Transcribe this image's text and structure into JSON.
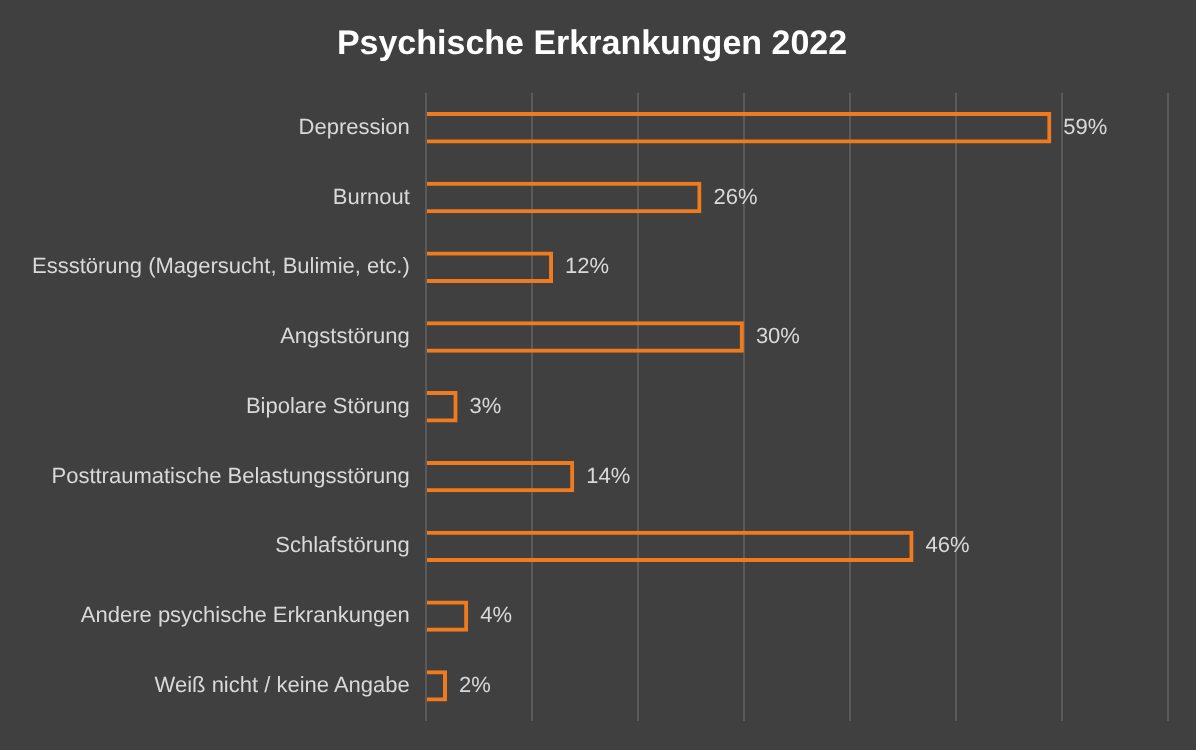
{
  "chart_data": {
    "type": "bar",
    "orientation": "horizontal",
    "title": "Psychische Erkrankungen 2022",
    "categories": [
      "Depression",
      "Burnout",
      "Essstörung (Magersucht, Bulimie, etc.)",
      "Angststörung",
      "Bipolare Störung",
      "Posttraumatische Belastungsstörung",
      "Schlafstörung",
      "Andere psychische Erkrankungen",
      "Weiß nicht / keine Angabe"
    ],
    "values": [
      59,
      26,
      12,
      30,
      3,
      14,
      46,
      4,
      2
    ],
    "value_labels": [
      "59%",
      "26%",
      "12%",
      "30%",
      "3%",
      "14%",
      "46%",
      "4%",
      "2%"
    ],
    "color": "#f07a1e",
    "xlim": [
      0,
      70
    ],
    "xticks": [
      {
        "value": 0,
        "label": null
      },
      {
        "value": 10,
        "label": null
      },
      {
        "value": 20,
        "label": null
      },
      {
        "value": 30,
        "label": null
      },
      {
        "value": 40,
        "label": null
      },
      {
        "value": 50,
        "label": null
      },
      {
        "value": 60,
        "label": null
      },
      {
        "value": 70,
        "label": null
      }
    ],
    "grid": "x",
    "tick_labels": "y"
  }
}
